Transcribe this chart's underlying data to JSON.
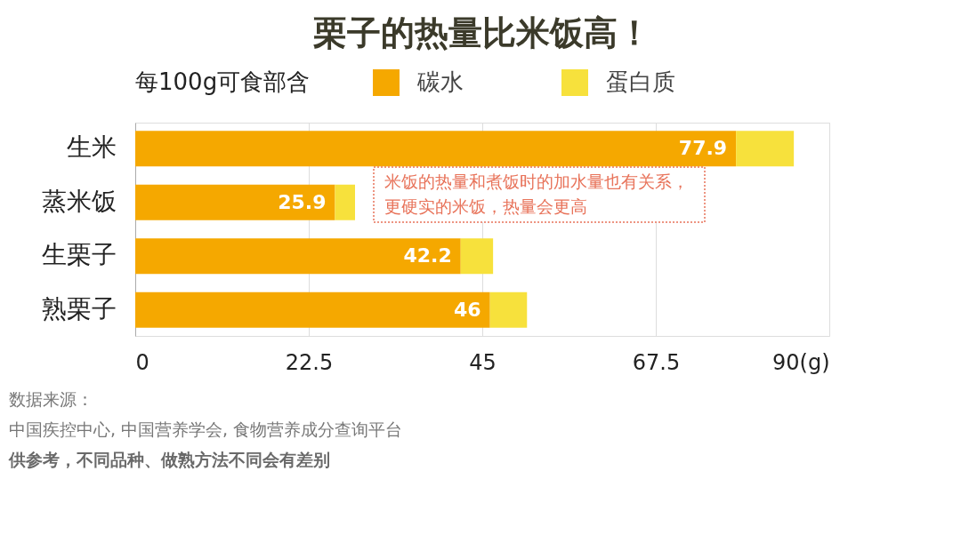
{
  "chart_data": {
    "type": "bar",
    "orientation": "horizontal",
    "stacked": true,
    "title": "栗子的热量比米饭高！",
    "legend_title": "每100g可食部含",
    "categories": [
      "生米",
      "蒸米饭",
      "生栗子",
      "熟栗子"
    ],
    "series": [
      {
        "name": "碳水",
        "color": "#f5a800",
        "values": [
          77.9,
          25.9,
          42.2,
          46
        ],
        "value_labels": [
          "77.9",
          "25.9",
          "42.2",
          "46"
        ]
      },
      {
        "name": "蛋白质",
        "color": "#f7e13c",
        "values": [
          7.5,
          2.6,
          4.2,
          4.8
        ]
      }
    ],
    "xlim": [
      0,
      90
    ],
    "xticks": [
      0,
      22.5,
      45,
      67.5,
      {
        "value": 90,
        "label": "90(g)"
      }
    ],
    "grid": "x",
    "legend": "top",
    "annotations": [
      "米饭的热量和煮饭时的加水量也有关系，",
      "更硬实的米饭，热量会更高",
      "数据来源：",
      "中国疾控中心, 中国营养学会, 食物营养成分查询平台",
      "供参考，不同品种、做熟方法不同会有差别"
    ]
  }
}
